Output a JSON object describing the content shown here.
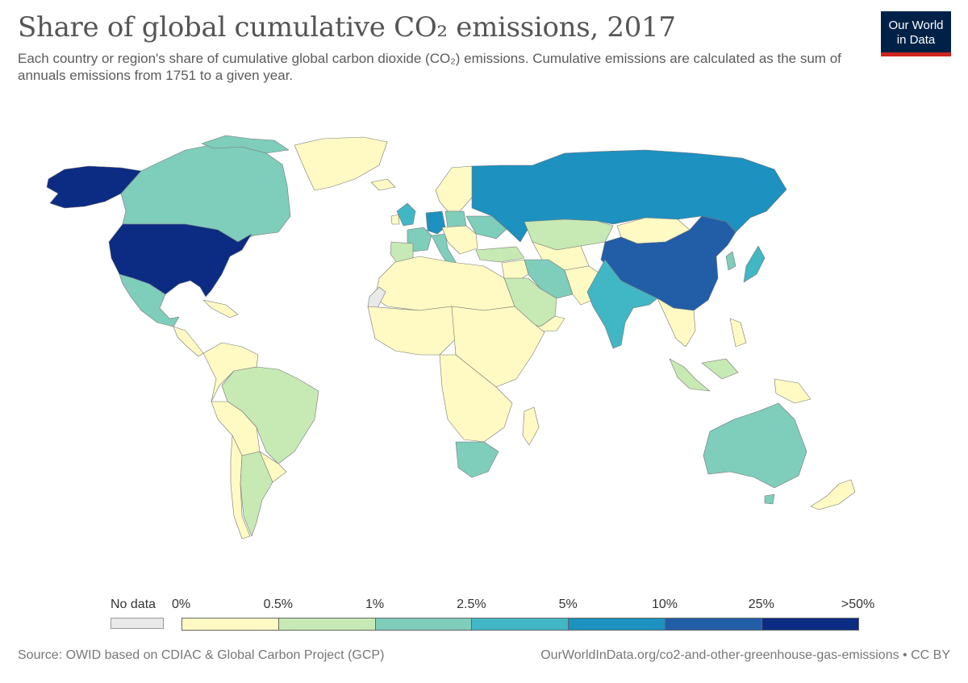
{
  "header": {
    "title": "Share of global cumulative CO₂ emissions, 2017",
    "subtitle": "Each country or region's share of cumulative global carbon dioxide (CO₂) emissions. Cumulative emissions are calculated as the sum of annuals emissions from 1751 to a given year.",
    "logo_line1": "Our World",
    "logo_line2": "in Data"
  },
  "legend": {
    "no_data_label": "No data",
    "no_data_color": "#e9e9e9",
    "bins": [
      {
        "from": "0%",
        "to": "0.5%",
        "color": "#fffac3"
      },
      {
        "from": "0.5%",
        "to": "1%",
        "color": "#c7e9b4"
      },
      {
        "from": "1%",
        "to": "2.5%",
        "color": "#7fcdbb"
      },
      {
        "from": "2.5%",
        "to": "5%",
        "color": "#41b6c4"
      },
      {
        "from": "5%",
        "to": "10%",
        "color": "#1d91c0"
      },
      {
        "from": "10%",
        "to": "25%",
        "color": "#225ea8"
      },
      {
        "from": "25%",
        "to": ">50%",
        "color": "#0c2c84"
      }
    ],
    "tick_labels": [
      "0%",
      "0.5%",
      "1%",
      "2.5%",
      "5%",
      "10%",
      "25%",
      ">50%"
    ]
  },
  "map_data": {
    "regions": [
      {
        "name": "United States",
        "bin": 6
      },
      {
        "name": "China",
        "bin": 5
      },
      {
        "name": "Russia",
        "bin": 4
      },
      {
        "name": "Germany",
        "bin": 4
      },
      {
        "name": "United Kingdom",
        "bin": 3
      },
      {
        "name": "Japan",
        "bin": 3
      },
      {
        "name": "India",
        "bin": 3
      },
      {
        "name": "France",
        "bin": 2
      },
      {
        "name": "Canada",
        "bin": 2
      },
      {
        "name": "Ukraine",
        "bin": 2
      },
      {
        "name": "Poland",
        "bin": 2
      },
      {
        "name": "Italy",
        "bin": 2
      },
      {
        "name": "Australia",
        "bin": 2
      },
      {
        "name": "South Africa",
        "bin": 2
      },
      {
        "name": "Mexico",
        "bin": 2
      },
      {
        "name": "Iran",
        "bin": 2
      },
      {
        "name": "Kazakhstan",
        "bin": 1
      },
      {
        "name": "Brazil",
        "bin": 1
      },
      {
        "name": "Saudi Arabia",
        "bin": 1
      },
      {
        "name": "Spain",
        "bin": 1
      },
      {
        "name": "Argentina",
        "bin": 1
      },
      {
        "name": "Indonesia",
        "bin": 1
      },
      {
        "name": "Turkey",
        "bin": 1
      },
      {
        "name": "Greenland",
        "bin": 0
      },
      {
        "name": "Mongolia",
        "bin": 0
      },
      {
        "name": "Africa (most countries)",
        "bin": 0
      },
      {
        "name": "South America (rest)",
        "bin": 0
      },
      {
        "name": "Scandinavia",
        "bin": 0
      },
      {
        "name": "New Zealand",
        "bin": 0
      },
      {
        "name": "Western Sahara",
        "bin": -1
      }
    ]
  },
  "footer": {
    "source": "Source: OWID based on CDIAC & Global Carbon Project (GCP)",
    "link": "OurWorldInData.org/co2-and-other-greenhouse-gas-emissions • CC BY"
  }
}
